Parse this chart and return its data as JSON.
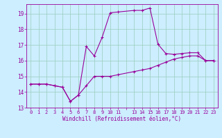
{
  "xlabel": "Windchill (Refroidissement éolien,°C)",
  "bg_color": "#cceeff",
  "line_color": "#990099",
  "grid_color": "#99ccbb",
  "ylim": [
    13.0,
    19.6
  ],
  "xlim": [
    -0.5,
    23.5
  ],
  "yticks": [
    13,
    14,
    15,
    16,
    17,
    18,
    19
  ],
  "xticks": [
    0,
    1,
    2,
    3,
    4,
    5,
    6,
    7,
    8,
    9,
    10,
    11,
    12,
    13,
    14,
    15,
    16,
    17,
    18,
    19,
    20,
    21,
    22,
    23
  ],
  "xtick_labels": [
    "0",
    "1",
    "2",
    "3",
    "4",
    "5",
    "6",
    "7",
    "8",
    "9",
    "10",
    "11",
    "",
    "13",
    "14",
    "15",
    "16",
    "17",
    "18",
    "19",
    "20",
    "21",
    "22",
    "23"
  ],
  "line1_x": [
    0,
    1,
    2,
    3,
    4,
    5,
    6,
    7,
    8,
    9,
    10,
    11,
    13,
    14,
    15,
    16,
    17,
    18,
    19,
    20,
    21,
    22,
    23
  ],
  "line1_y": [
    14.5,
    14.5,
    14.5,
    14.4,
    14.3,
    13.4,
    13.8,
    14.4,
    15.0,
    15.0,
    15.0,
    15.1,
    15.3,
    15.4,
    15.5,
    15.7,
    15.9,
    16.1,
    16.2,
    16.3,
    16.3,
    16.0,
    16.0
  ],
  "line2_x": [
    0,
    1,
    2,
    3,
    4,
    5,
    6,
    7,
    8,
    9,
    10,
    11,
    13,
    14,
    15,
    16,
    17,
    18,
    19,
    20,
    21,
    22,
    23
  ],
  "line2_y": [
    14.5,
    14.5,
    14.5,
    14.4,
    14.3,
    13.4,
    13.8,
    16.9,
    16.3,
    17.5,
    19.05,
    19.1,
    19.2,
    19.2,
    19.35,
    17.05,
    16.45,
    16.4,
    16.45,
    16.5,
    16.5,
    16.0,
    16.0
  ]
}
